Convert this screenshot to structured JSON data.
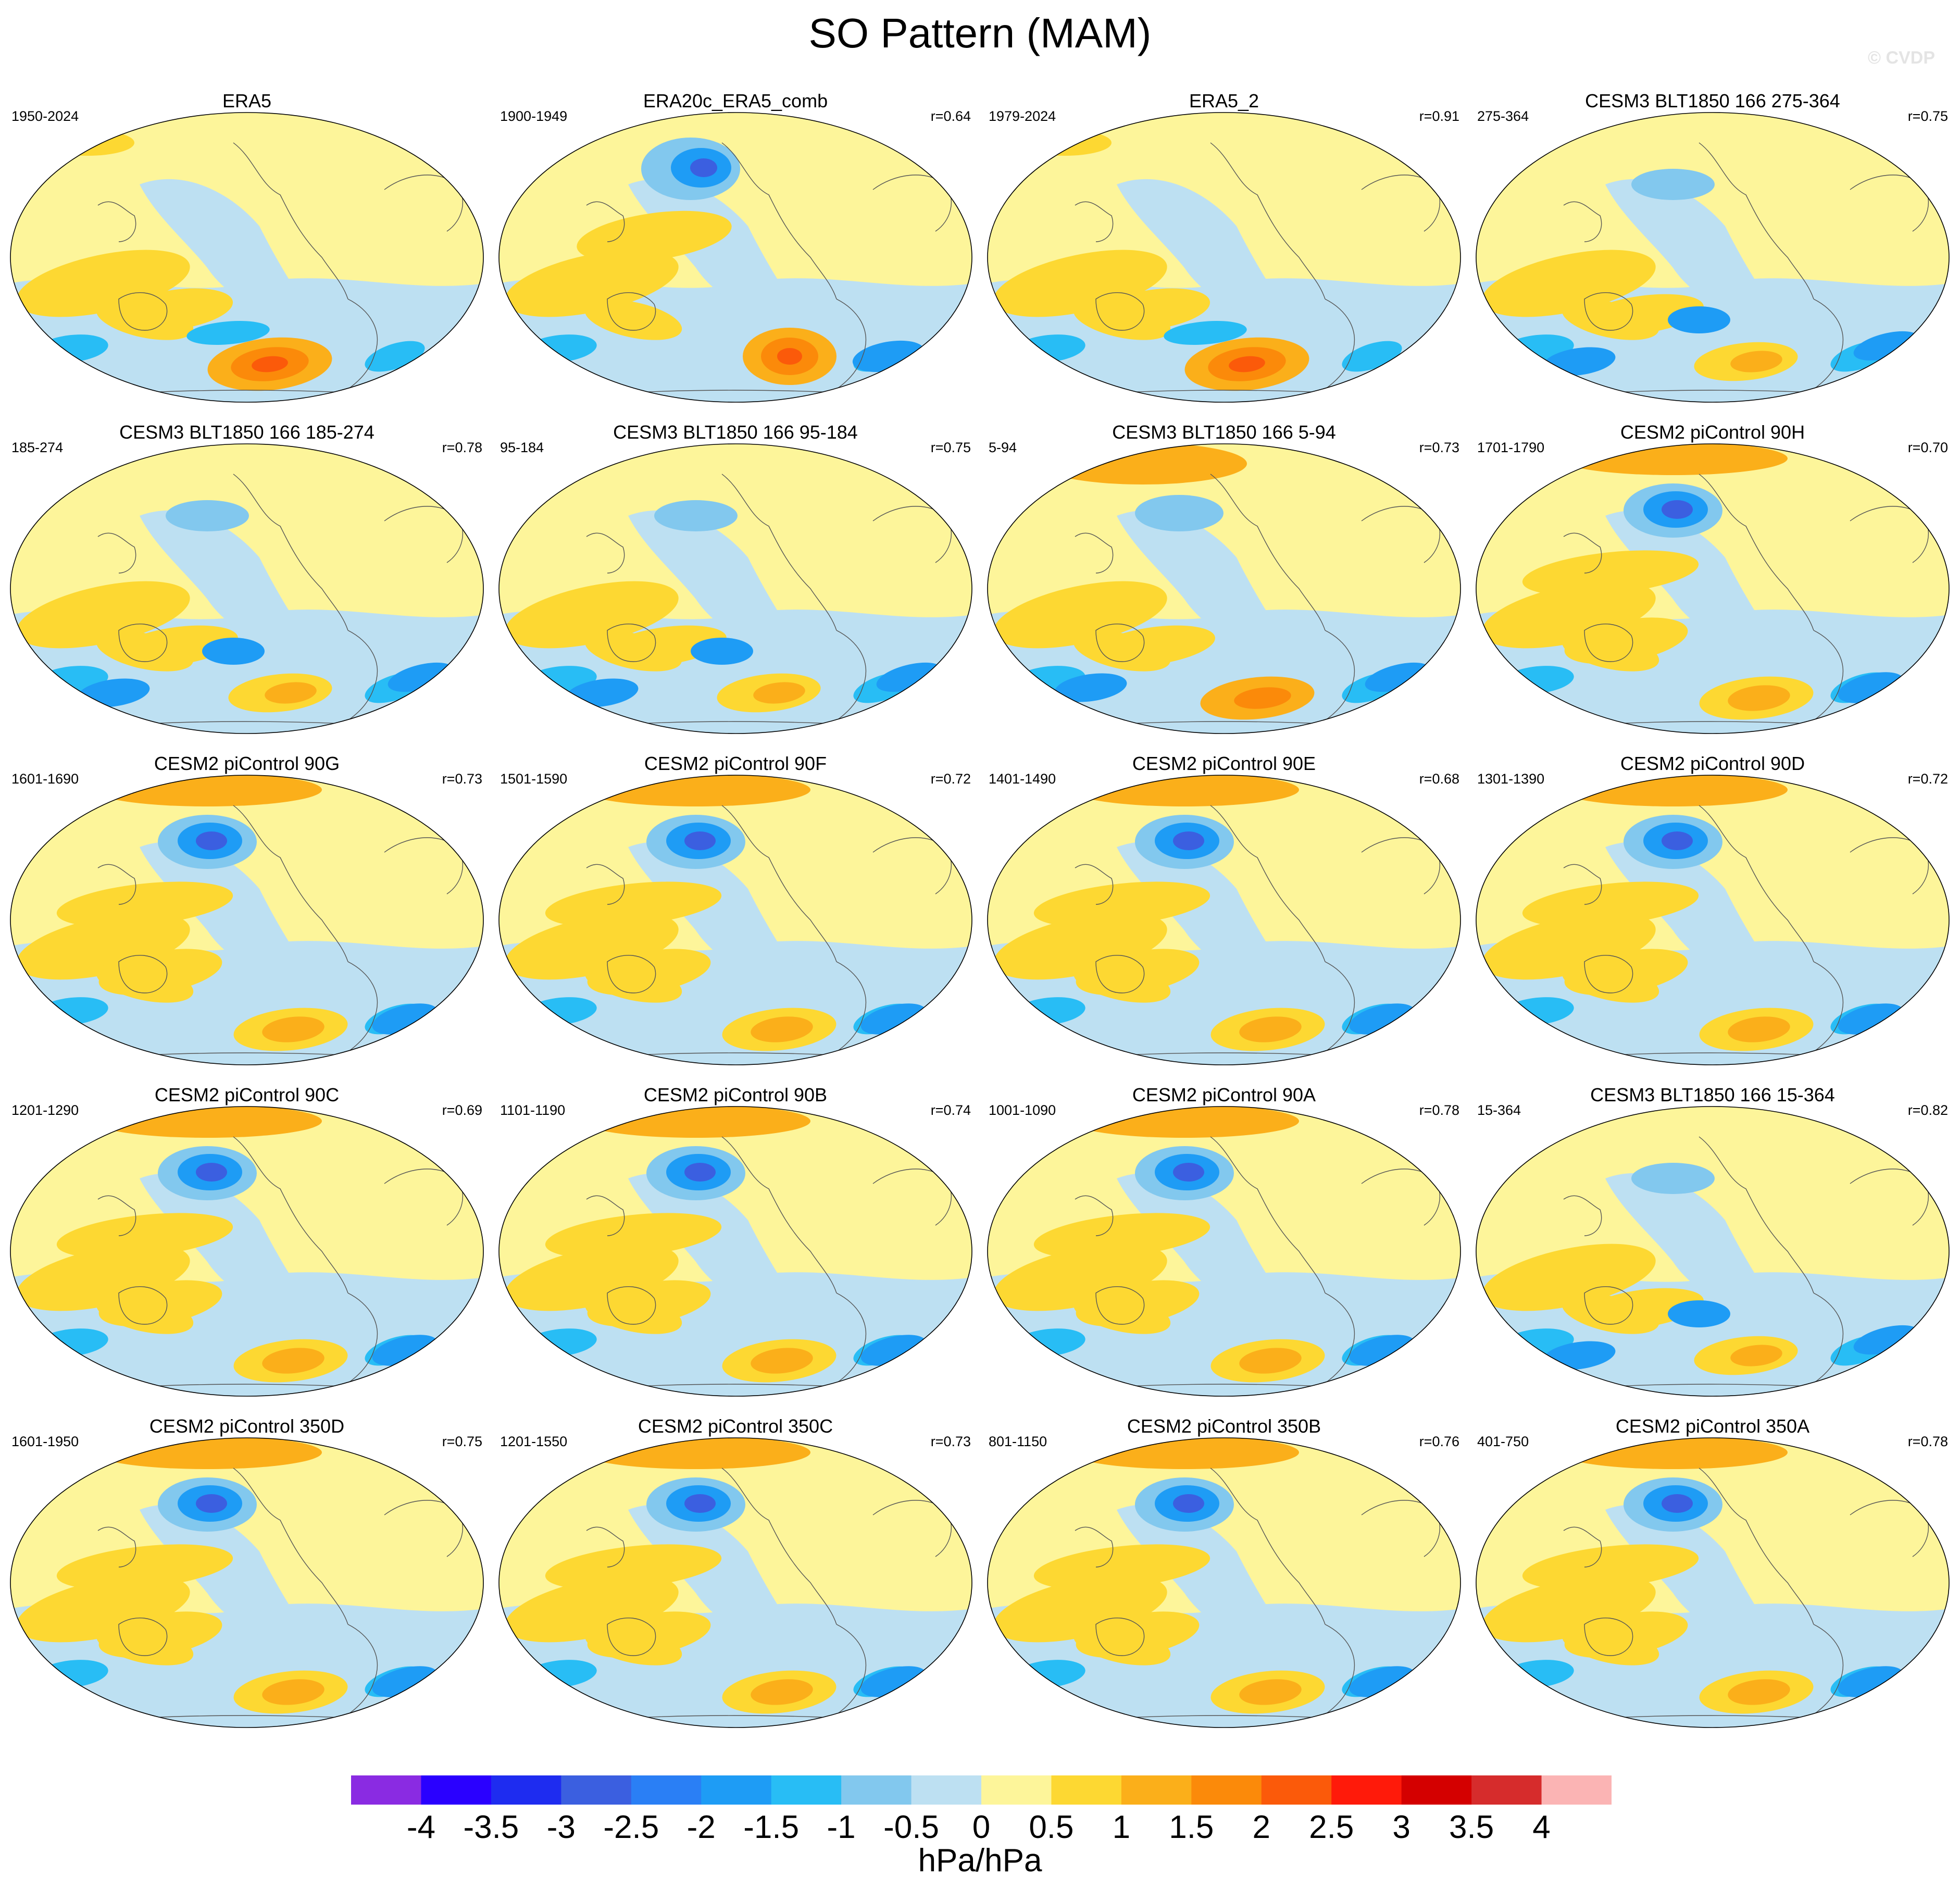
{
  "figure": {
    "title": "SO Pattern (MAM)",
    "watermark": "© CVDP",
    "units": "hPa/hPa"
  },
  "colorbar": {
    "tick_labels": [
      "-4",
      "-3.5",
      "-3",
      "-2.5",
      "-2",
      "-1.5",
      "-1",
      "-0.5",
      "0",
      "0.5",
      "1",
      "1.5",
      "2",
      "2.5",
      "3",
      "3.5",
      "4"
    ],
    "colors": [
      "#8a2be2",
      "#2a00ff",
      "#1e2cf0",
      "#3b5fe0",
      "#2a7ff5",
      "#1e9cf5",
      "#28bdf5",
      "#82c8ee",
      "#bde0f2",
      "#fdf59a",
      "#fdd832",
      "#fbaf1a",
      "#fb8a0a",
      "#fb5a0a",
      "#ff1a0a",
      "#d40000",
      "#d62c2c",
      "#fbb4b4"
    ]
  },
  "panels": [
    {
      "title": "ERA5",
      "years": "1950-2024",
      "corr": "",
      "style": "era5"
    },
    {
      "title": "ERA20c_ERA5_comb",
      "years": "1900-1949",
      "corr": "r=0.64",
      "style": "era20c"
    },
    {
      "title": "ERA5_2",
      "years": "1979-2024",
      "corr": "r=0.91",
      "style": "era5"
    },
    {
      "title": "CESM3 BLT1850 166 275-364",
      "years": "275-364",
      "corr": "r=0.75",
      "style": "cesm3"
    },
    {
      "title": "CESM3 BLT1850 166 185-274",
      "years": "185-274",
      "corr": "r=0.78",
      "style": "cesm3"
    },
    {
      "title": "CESM3 BLT1850 166 95-184",
      "years": "95-184",
      "corr": "r=0.75",
      "style": "cesm3"
    },
    {
      "title": "CESM3 BLT1850 166 5-94",
      "years": "5-94",
      "corr": "r=0.73",
      "style": "cesm3b"
    },
    {
      "title": "CESM2 piControl 90H",
      "years": "1701-1790",
      "corr": "r=0.70",
      "style": "cesm2"
    },
    {
      "title": "CESM2 piControl 90G",
      "years": "1601-1690",
      "corr": "r=0.73",
      "style": "cesm2"
    },
    {
      "title": "CESM2 piControl 90F",
      "years": "1501-1590",
      "corr": "r=0.72",
      "style": "cesm2"
    },
    {
      "title": "CESM2 piControl 90E",
      "years": "1401-1490",
      "corr": "r=0.68",
      "style": "cesm2"
    },
    {
      "title": "CESM2 piControl 90D",
      "years": "1301-1390",
      "corr": "r=0.72",
      "style": "cesm2"
    },
    {
      "title": "CESM2 piControl 90C",
      "years": "1201-1290",
      "corr": "r=0.69",
      "style": "cesm2"
    },
    {
      "title": "CESM2 piControl 90B",
      "years": "1101-1190",
      "corr": "r=0.74",
      "style": "cesm2"
    },
    {
      "title": "CESM2 piControl 90A",
      "years": "1001-1090",
      "corr": "r=0.78",
      "style": "cesm2"
    },
    {
      "title": "CESM3 BLT1850 166 15-364",
      "years": "15-364",
      "corr": "r=0.82",
      "style": "cesm3"
    },
    {
      "title": "CESM2 piControl 350D",
      "years": "1601-1950",
      "corr": "r=0.75",
      "style": "cesm2"
    },
    {
      "title": "CESM2 piControl 350C",
      "years": "1201-1550",
      "corr": "r=0.73",
      "style": "cesm2"
    },
    {
      "title": "CESM2 piControl 350B",
      "years": "801-1150",
      "corr": "r=0.76",
      "style": "cesm2"
    },
    {
      "title": "CESM2 piControl 350A",
      "years": "401-750",
      "corr": "r=0.78",
      "style": "cesm2"
    }
  ]
}
